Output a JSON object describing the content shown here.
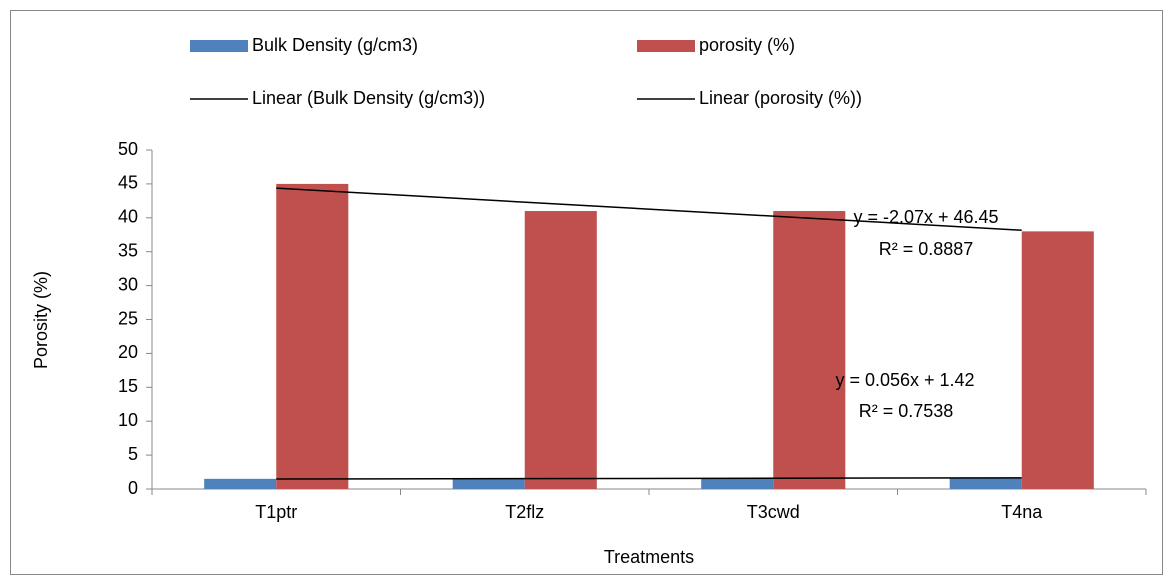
{
  "chart_data": {
    "type": "bar",
    "categories": [
      "T1ptr",
      "T2flz",
      "T3cwd",
      "T4na"
    ],
    "series": [
      {
        "name": "Bulk Density (g/cm3)",
        "color": "#4f81bd",
        "values": [
          1.5,
          1.5,
          1.6,
          1.6
        ]
      },
      {
        "name": "porosity (%)",
        "color": "#c0504d",
        "values": [
          45,
          41,
          41,
          38
        ]
      }
    ],
    "trendlines": [
      {
        "name": "Linear (Bulk Density (g/cm3))",
        "series": 0,
        "color": "#000000",
        "slope": 0.056,
        "intercept": 1.42,
        "equation": "y = 0.056x + 1.42",
        "r2": 0.7538,
        "r2_label": "R² = 0.7538"
      },
      {
        "name": "Linear (porosity (%))",
        "series": 1,
        "color": "#000000",
        "slope": -2.07,
        "intercept": 46.45,
        "equation": "y = -2.07x + 46.45",
        "r2": 0.8887,
        "r2_label": "R² = 0.8887"
      }
    ],
    "y_label": "Porosity  (%)",
    "x_label": "Treatments",
    "ylim": [
      0,
      50
    ],
    "yticks": [
      0,
      5,
      10,
      15,
      20,
      25,
      30,
      35,
      40,
      45,
      50
    ],
    "legend": "top"
  }
}
